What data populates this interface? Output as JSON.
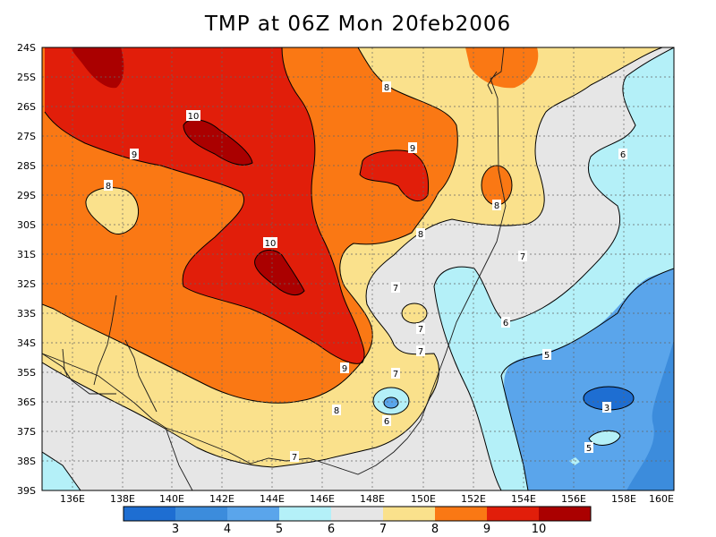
{
  "title": "TMP at 06Z Mon 20feb2006",
  "map": {
    "lat_labels": [
      "24S",
      "25S",
      "26S",
      "27S",
      "28S",
      "29S",
      "30S",
      "31S",
      "32S",
      "33S",
      "34S",
      "35S",
      "36S",
      "37S",
      "38S",
      "39S"
    ],
    "lon_labels": [
      "136E",
      "138E",
      "140E",
      "142E",
      "144E",
      "146E",
      "148E",
      "150E",
      "152E",
      "154E",
      "156E",
      "158E",
      "160E"
    ],
    "grid": "dotted",
    "contour_labels": [
      {
        "id": "c10a",
        "text": "10"
      },
      {
        "id": "c10b",
        "text": "10"
      },
      {
        "id": "c9a",
        "text": "9"
      },
      {
        "id": "c9b",
        "text": "9"
      },
      {
        "id": "c9c",
        "text": "9"
      },
      {
        "id": "c8a",
        "text": "8"
      },
      {
        "id": "c8b",
        "text": "8"
      },
      {
        "id": "c8c",
        "text": "8"
      },
      {
        "id": "c8d",
        "text": "8"
      },
      {
        "id": "c8e",
        "text": "8"
      },
      {
        "id": "c7a",
        "text": "7"
      },
      {
        "id": "c7b",
        "text": "7"
      },
      {
        "id": "c7c",
        "text": "7"
      },
      {
        "id": "c7d",
        "text": "7"
      },
      {
        "id": "c7e",
        "text": "7"
      },
      {
        "id": "c7f",
        "text": "7"
      },
      {
        "id": "c6a",
        "text": "6"
      },
      {
        "id": "c6b",
        "text": "6"
      },
      {
        "id": "c6c",
        "text": "6"
      },
      {
        "id": "c5a",
        "text": "5"
      },
      {
        "id": "c5b",
        "text": "5"
      },
      {
        "id": "c3a",
        "text": "3"
      }
    ]
  },
  "colorbar": {
    "labels": [
      "3",
      "4",
      "5",
      "6",
      "7",
      "8",
      "9",
      "10"
    ],
    "colors": [
      "#1e6ed2",
      "#3c8cdc",
      "#5aa5eb",
      "#b4f0f8",
      "#e6e6e6",
      "#fae18c",
      "#fa7814",
      "#e11e0a",
      "#aa0000"
    ]
  }
}
